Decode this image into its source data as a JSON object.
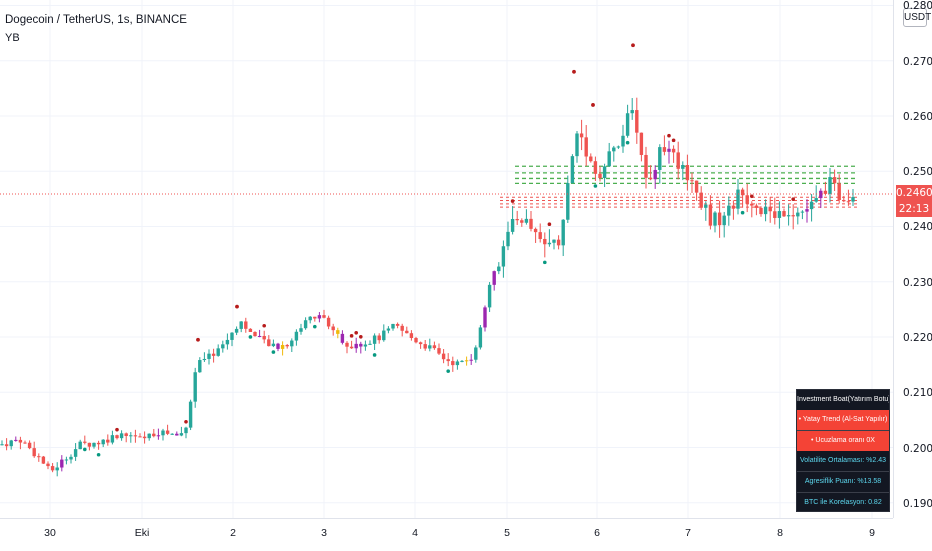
{
  "legend": {
    "symbol_title": "Dogecoin / TetherUS, 1s, BINANCE",
    "indicator": "YB"
  },
  "price_axis": {
    "unit": "USDT",
    "ticks": [
      "0.2800",
      "0.2700",
      "0.2600",
      "0.2500",
      "0.2400",
      "0.2300",
      "0.2200",
      "0.2100",
      "0.2000",
      "0.1900"
    ],
    "current_price": "0.2460",
    "countdown": "22:13",
    "price_color": "#ef5350"
  },
  "time_axis": {
    "ticks": [
      "30",
      "Eki",
      "2",
      "3",
      "4",
      "5",
      "6",
      "7",
      "8",
      "9"
    ]
  },
  "colors": {
    "up": "#26a69a",
    "down": "#ef5350",
    "highlight": "#9c27b0",
    "neutral": "#f0b90b",
    "dot": "#b71c1c",
    "teal_dot": "#089981",
    "resistance": "#4caf50",
    "support": "#ef5350"
  },
  "panel": {
    "title": "Investment Boat(Yatırım Botu)",
    "rows": [
      "• Yatay Trend (Al-Sat Yapılır)",
      "• Ucuzlama oranı 0X",
      "Volatilite Ortalaması: %2.43",
      "Agresiflik Puanı: %13.58",
      "BTC ile Korelasyon: 0.82"
    ]
  }
}
